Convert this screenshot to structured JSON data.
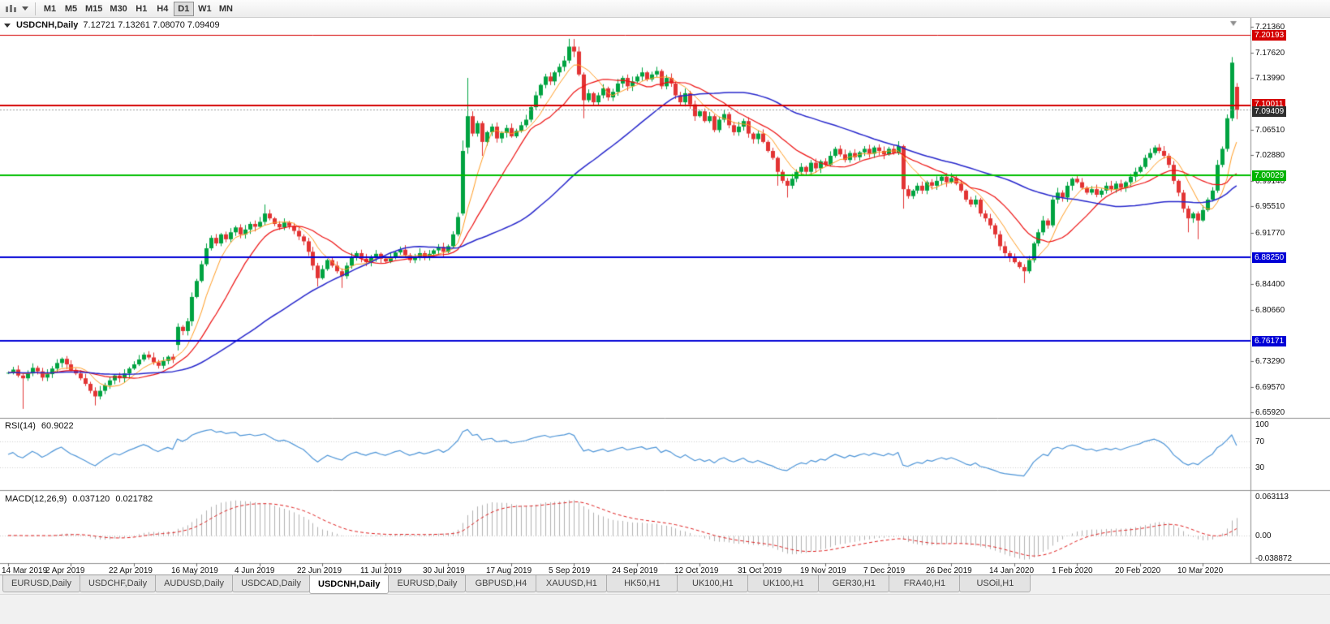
{
  "toolbar": {
    "timeframes": [
      {
        "label": "M1",
        "active": false
      },
      {
        "label": "M5",
        "active": false
      },
      {
        "label": "M15",
        "active": false
      },
      {
        "label": "M30",
        "active": false
      },
      {
        "label": "H1",
        "active": false
      },
      {
        "label": "H4",
        "active": false
      },
      {
        "label": "D1",
        "active": true
      },
      {
        "label": "W1",
        "active": false
      },
      {
        "label": "MN",
        "active": false
      }
    ]
  },
  "chart": {
    "title": "USDCNH,Daily",
    "ohlc": "7.12721 7.13261 7.08070 7.09409"
  },
  "y_axis": {
    "ticks": [
      "7.21360",
      "7.17620",
      "7.13990",
      "7.06510",
      "7.02880",
      "6.99140",
      "6.95510",
      "6.91770",
      "6.84400",
      "6.80660",
      "6.73290",
      "6.69570",
      "6.65920"
    ]
  },
  "badges": [
    {
      "label": "7.20193",
      "color": "#d40000"
    },
    {
      "label": "7.10011",
      "color": "#d40000"
    },
    {
      "label": "7.09409",
      "color": "#2e2e2e"
    },
    {
      "label": "7.00029",
      "color": "#00b400"
    },
    {
      "label": "6.88250",
      "color": "#0000d6"
    },
    {
      "label": "6.76171",
      "color": "#0000d6"
    }
  ],
  "hlines": [
    {
      "price": 7.20193,
      "color": "#d40000",
      "width": 1
    },
    {
      "price": 7.10011,
      "color": "#d40000",
      "width": 2
    },
    {
      "price": 7.00029,
      "color": "#00be00",
      "width": 2
    },
    {
      "price": 6.8825,
      "color": "#0000d6",
      "width": 2
    },
    {
      "price": 6.76171,
      "color": "#0000d6",
      "width": 2
    }
  ],
  "bid_line": {
    "price": 7.09409,
    "color": "#999999"
  },
  "rsi": {
    "label": "RSI(14)",
    "value": "60.9022",
    "levels": [
      "100",
      "70",
      "30"
    ],
    "level_values": [
      100,
      70,
      30
    ],
    "line_color": "#4f96d8"
  },
  "macd": {
    "label": "MACD(12,26,9)",
    "value_main": "0.037120",
    "value_signal": "0.021782",
    "levels": [
      "0.063113",
      "0.00",
      "-0.038872"
    ],
    "level_values": [
      0.063113,
      0,
      -0.038872
    ],
    "signal_color": "#e02020",
    "histogram_color": "#b2b2b2"
  },
  "x_axis": {
    "labels": [
      "14 Mar 2019",
      "2 Apr 2019",
      "22 Apr 2019",
      "16 May 2019",
      "4 Jun 2019",
      "22 Jun 2019",
      "11 Jul 2019",
      "30 Jul 2019",
      "17 Aug 2019",
      "5 Sep 2019",
      "24 Sep 2019",
      "12 Oct 2019",
      "31 Oct 2019",
      "19 Nov 2019",
      "7 Dec 2019",
      "26 Dec 2019",
      "14 Jan 2020",
      "1 Feb 2020",
      "20 Feb 2020",
      "10 Mar 2020"
    ]
  },
  "tabs": [
    {
      "label": "EURUSD,Daily",
      "active": false
    },
    {
      "label": "USDCHF,Daily",
      "active": false
    },
    {
      "label": "AUDUSD,Daily",
      "active": false
    },
    {
      "label": "USDCAD,Daily",
      "active": false
    },
    {
      "label": "USDCNH,Daily",
      "active": true
    },
    {
      "label": "EURUSD,Daily",
      "active": false
    },
    {
      "label": "GBPUSD,H4",
      "active": false
    },
    {
      "label": "XAUUSD,H1",
      "active": false
    },
    {
      "label": "HK50,H1",
      "active": false
    },
    {
      "label": "UK100,H1",
      "active": false
    },
    {
      "label": "UK100,H1",
      "active": false
    },
    {
      "label": "GER30,H1",
      "active": false
    },
    {
      "label": "FRA40,H1",
      "active": false
    },
    {
      "label": "USOil,H1",
      "active": false
    }
  ],
  "chart_data": {
    "type": "candlestick",
    "title": "USDCNH,Daily",
    "symbol": "USDCNH",
    "timeframe": "Daily",
    "last_ohlc": {
      "open": 7.12721,
      "high": 7.13261,
      "low": 7.0807,
      "close": 7.09409
    },
    "price_axis": {
      "min": 6.6592,
      "max": 7.2136
    },
    "x_labels": [
      "14 Mar 2019",
      "2 Apr 2019",
      "22 Apr 2019",
      "16 May 2019",
      "4 Jun 2019",
      "22 Jun 2019",
      "11 Jul 2019",
      "30 Jul 2019",
      "17 Aug 2019",
      "5 Sep 2019",
      "24 Sep 2019",
      "12 Oct 2019",
      "31 Oct 2019",
      "19 Nov 2019",
      "7 Dec 2019",
      "26 Dec 2019",
      "14 Jan 2020",
      "1 Feb 2020",
      "20 Feb 2020",
      "10 Mar 2020"
    ],
    "label_interval_bars": 13,
    "colors": {
      "up": "#00a341",
      "down": "#e23434",
      "ma_fast": "#ff9c21",
      "ma_mid": "#ee1111",
      "ma_slow": "#2727cc"
    },
    "indicators": {
      "rsi_period": 14,
      "rsi_current": 60.9022,
      "macd_params": "12,26,9",
      "macd_current": 0.03712,
      "macd_signal_current": 0.021782
    },
    "closes": [
      6.716,
      6.7205,
      6.712,
      6.708,
      6.715,
      6.723,
      6.718,
      6.709,
      6.714,
      6.722,
      6.73,
      6.736,
      6.728,
      6.72,
      6.715,
      6.708,
      6.7,
      6.69,
      6.682,
      6.69,
      6.698,
      6.705,
      6.712,
      6.708,
      6.715,
      6.722,
      6.728,
      6.735,
      6.742,
      6.738,
      6.731,
      6.726,
      6.733,
      6.739,
      6.735,
      6.782,
      6.776,
      6.79,
      6.825,
      6.848,
      6.872,
      6.895,
      6.91,
      6.902,
      6.915,
      6.908,
      6.918,
      6.925,
      6.915,
      6.922,
      6.93,
      6.926,
      6.933,
      6.945,
      6.938,
      6.93,
      6.925,
      6.932,
      6.927,
      6.92,
      6.912,
      6.905,
      6.89,
      6.87,
      6.852,
      6.865,
      6.878,
      6.87,
      6.862,
      6.855,
      6.87,
      6.882,
      6.888,
      6.88,
      6.875,
      6.882,
      6.887,
      6.88,
      6.876,
      6.882,
      6.889,
      6.893,
      6.885,
      6.878,
      6.882,
      6.888,
      6.883,
      6.887,
      6.892,
      6.897,
      6.89,
      6.898,
      6.915,
      6.94,
      7.035,
      7.085,
      7.06,
      7.075,
      7.048,
      7.062,
      7.07,
      7.053,
      7.061,
      7.068,
      7.056,
      7.064,
      7.072,
      7.08,
      7.098,
      7.115,
      7.13,
      7.142,
      7.135,
      7.148,
      7.156,
      7.165,
      7.185,
      7.178,
      7.145,
      7.108,
      7.118,
      7.105,
      7.115,
      7.125,
      7.112,
      7.12,
      7.132,
      7.14,
      7.128,
      7.135,
      7.142,
      7.148,
      7.138,
      7.145,
      7.15,
      7.128,
      7.14,
      7.132,
      7.115,
      7.105,
      7.118,
      7.102,
      7.085,
      7.092,
      7.078,
      7.085,
      7.065,
      7.08,
      7.088,
      7.072,
      7.062,
      7.07,
      7.078,
      7.06,
      7.052,
      7.06,
      7.048,
      7.035,
      7.025,
      7.005,
      6.992,
      6.985,
      6.995,
      7.005,
      7.012,
      7.005,
      7.018,
      7.01,
      7.02,
      7.015,
      7.028,
      7.038,
      7.03,
      7.022,
      7.032,
      7.026,
      7.033,
      7.038,
      7.031,
      7.04,
      7.035,
      7.03,
      7.038,
      7.032,
      7.042,
      6.98,
      6.97,
      6.978,
      6.985,
      6.978,
      6.99,
      6.985,
      6.992,
      6.998,
      6.99,
      6.996,
      6.988,
      6.978,
      6.965,
      6.958,
      6.965,
      6.945,
      6.938,
      6.928,
      6.915,
      6.898,
      6.888,
      6.882,
      6.875,
      6.868,
      6.862,
      6.878,
      6.902,
      6.918,
      6.935,
      6.928,
      6.965,
      6.975,
      6.968,
      6.985,
      6.995,
      6.99,
      6.982,
      6.975,
      6.98,
      6.972,
      6.978,
      6.985,
      6.98,
      6.988,
      6.982,
      6.99,
      6.998,
      7.005,
      7.012,
      7.025,
      7.032,
      7.04,
      7.035,
      7.028,
      7.015,
      6.992,
      6.975,
      6.952,
      6.938,
      6.945,
      6.935,
      6.95,
      6.965,
      6.978,
      7.015,
      7.038,
      7.082,
      7.162,
      7.0941
    ],
    "open_rule": "open equals previous close unless overridden",
    "overrides": {
      "3": [
        6.712,
        6.716,
        6.664,
        6.708
      ],
      "18": [
        6.69,
        6.695,
        6.669,
        6.682
      ],
      "35": [
        6.756,
        6.787,
        6.748,
        6.782
      ],
      "53": [
        6.933,
        6.958,
        6.928,
        6.945
      ],
      "64": [
        6.87,
        6.874,
        6.84,
        6.852
      ],
      "69": [
        6.862,
        6.866,
        6.838,
        6.855
      ],
      "94": [
        6.945,
        7.05,
        6.942,
        7.035
      ],
      "95": [
        7.04,
        7.14,
        7.031,
        7.085
      ],
      "98": [
        7.075,
        7.078,
        7.028,
        7.048
      ],
      "116": [
        7.165,
        7.1963,
        7.161,
        7.185
      ],
      "117": [
        7.185,
        7.196,
        7.17,
        7.178
      ],
      "119": [
        7.145,
        7.148,
        7.082,
        7.108
      ],
      "131": [
        7.142,
        7.155,
        7.136,
        7.148
      ],
      "159": [
        7.025,
        7.027,
        6.985,
        7.005
      ],
      "161": [
        6.992,
        6.996,
        6.968,
        6.985
      ],
      "185": [
        7.042,
        7.044,
        6.952,
        6.98
      ],
      "210": [
        6.868,
        6.872,
        6.845,
        6.862
      ],
      "216": [
        6.928,
        6.97,
        6.925,
        6.965
      ],
      "244": [
        6.952,
        6.956,
        6.918,
        6.938
      ],
      "246": [
        6.945,
        6.948,
        6.908,
        6.935
      ],
      "253": [
        7.082,
        7.17,
        7.078,
        7.162
      ],
      "254": [
        7.12721,
        7.13261,
        7.0807,
        7.09409
      ]
    }
  }
}
